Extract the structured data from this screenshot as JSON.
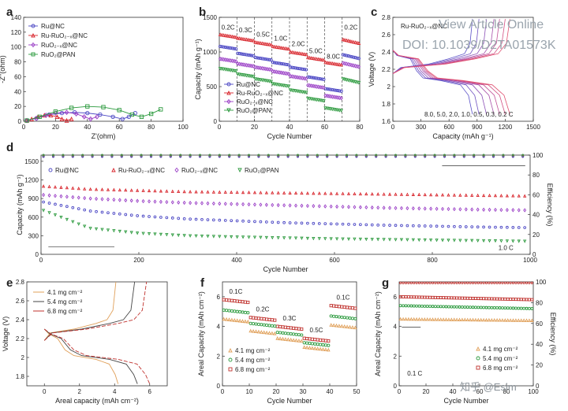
{
  "watermark": {
    "line1": "View Article Online",
    "line2": "DOI: 10.1039/D2TA01573K",
    "line3": "知乎 @Esim"
  },
  "chart_data": [
    {
      "id": "a",
      "type": "scatter",
      "label": "a",
      "xlabel": "Z'(ohm)",
      "ylabel": "-Z''(ohm)",
      "xlim": [
        0,
        100
      ],
      "ylim": [
        0,
        140
      ],
      "xticks": [
        0,
        20,
        40,
        60,
        80,
        100
      ],
      "yticks": [
        0,
        20,
        40,
        60,
        80,
        100,
        120,
        140
      ],
      "legend": [
        "Ru@NC",
        "Ru-RuO2-x@NC",
        "RuO2-x@NC",
        "RuO2@PAN"
      ],
      "series": [
        {
          "name": "Ru@NC",
          "color": "#4a46c4",
          "marker": "circle",
          "x": [
            2,
            8,
            16,
            24,
            32,
            40,
            48,
            56,
            62,
            66,
            70
          ],
          "y": [
            1,
            4,
            9,
            11,
            12,
            11,
            9,
            6,
            3,
            6,
            11
          ]
        },
        {
          "name": "Ru-RuO2-x@NC",
          "color": "#d8242b",
          "marker": "triangle",
          "x": [
            2,
            5,
            9,
            13,
            17,
            21,
            24,
            27,
            30
          ],
          "y": [
            1,
            3,
            6,
            8,
            8,
            6,
            3,
            1,
            3
          ]
        },
        {
          "name": "RuO2-x@NC",
          "color": "#9a3fc6",
          "marker": "diamond",
          "x": [
            2,
            8,
            14,
            20,
            27,
            33,
            38,
            42,
            46
          ],
          "y": [
            1,
            4,
            8,
            11,
            12,
            10,
            6,
            3,
            6
          ]
        },
        {
          "name": "RuO2@PAN",
          "color": "#2c9a3e",
          "marker": "square",
          "x": [
            2,
            10,
            20,
            30,
            40,
            50,
            60,
            68,
            74,
            80,
            86
          ],
          "y": [
            1,
            6,
            13,
            18,
            20,
            19,
            15,
            9,
            6,
            10,
            16
          ]
        }
      ]
    },
    {
      "id": "b",
      "type": "scatter",
      "label": "b",
      "xlabel": "Cycle Number",
      "ylabel": "Capacity (mAh g⁻¹)",
      "xlim": [
        0,
        80
      ],
      "ylim": [
        0,
        1500
      ],
      "xticks": [
        0,
        20,
        40,
        60,
        80
      ],
      "yticks": [
        0,
        500,
        1000,
        1500
      ],
      "rates": [
        {
          "label": "0.2C",
          "x": 5
        },
        {
          "label": "0.3C",
          "x": 15
        },
        {
          "label": "0.5C",
          "x": 25
        },
        {
          "label": "1.0C",
          "x": 35
        },
        {
          "label": "2.0C",
          "x": 45
        },
        {
          "label": "5.0C",
          "x": 55
        },
        {
          "label": "8.0C",
          "x": 65
        },
        {
          "label": "0.2C",
          "x": 75
        }
      ],
      "boundaries": [
        10,
        20,
        30,
        40,
        50,
        60,
        70
      ],
      "legend": [
        "Ru@NC",
        "Ru-RuO2-x@NC",
        "RuO2-x@NC",
        "RuO2@PAN"
      ],
      "series": [
        {
          "name": "Ru-RuO2-x@NC",
          "color": "#d8242b",
          "marker": "triangle",
          "levels": [
            1250,
            1200,
            1140,
            1080,
            1000,
            920,
            850,
            1180
          ]
        },
        {
          "name": "Ru@NC",
          "color": "#4a46c4",
          "marker": "circle",
          "levels": [
            1080,
            980,
            920,
            850,
            780,
            640,
            470,
            960
          ]
        },
        {
          "name": "RuO2-x@NC",
          "color": "#9a3fc6",
          "marker": "diamond",
          "levels": [
            900,
            830,
            780,
            720,
            650,
            520,
            370,
            840
          ]
        },
        {
          "name": "RuO2@PAN",
          "color": "#2c9a3e",
          "marker": "triangle-down",
          "levels": [
            760,
            680,
            610,
            540,
            450,
            330,
            190,
            610
          ]
        }
      ]
    },
    {
      "id": "c",
      "type": "line",
      "label": "c",
      "title": "Ru-RuO2-x@NC",
      "xlabel": "Capacity (mAh g⁻¹)",
      "ylabel": "Voltage (V)",
      "xlim": [
        0,
        1500
      ],
      "ylim": [
        1.6,
        2.8
      ],
      "xticks": [
        0,
        300,
        600,
        900,
        1200,
        1500
      ],
      "yticks": [
        1.6,
        1.8,
        2.0,
        2.2,
        2.4,
        2.6,
        2.8
      ],
      "rate_note": "8.0, 5.0, 2.0, 1.0, 0.5, 0.3, 0.2 C",
      "curves": [
        {
          "rate": "8.0",
          "color": "#5a50c8",
          "capacity": 850
        },
        {
          "rate": "5.0",
          "color": "#6d4fbf",
          "capacity": 920
        },
        {
          "rate": "2.0",
          "color": "#8b4fb6",
          "capacity": 1000
        },
        {
          "rate": "1.0",
          "color": "#a64fa8",
          "capacity": 1080
        },
        {
          "rate": "0.5",
          "color": "#c04f96",
          "capacity": 1140
        },
        {
          "rate": "0.3",
          "color": "#d24f82",
          "capacity": 1200
        },
        {
          "rate": "0.2",
          "color": "#e05070",
          "capacity": 1250
        }
      ]
    },
    {
      "id": "d",
      "type": "scatter",
      "label": "d",
      "xlabel": "Cycle Number",
      "ylabel": "Capacity (mAh g⁻¹)",
      "y2label": "Efficiency (%)",
      "xlim": [
        0,
        1000
      ],
      "ylim": [
        0,
        1600
      ],
      "y2lim": [
        0,
        100
      ],
      "xticks": [
        0,
        200,
        400,
        600,
        800,
        1000
      ],
      "yticks": [
        0,
        300,
        600,
        900,
        1200,
        1500
      ],
      "y2ticks": [
        0,
        20,
        40,
        60,
        80,
        100
      ],
      "rate_note": "1.0 C",
      "legend": [
        "Ru@NC",
        "Ru-RuO2-x@NC",
        "RuO2-x@NC",
        "RuO2@PAN"
      ],
      "series": [
        {
          "name": "Ru-RuO2-x@NC",
          "color": "#d8242b",
          "marker": "triangle",
          "x": [
            1,
            100,
            200,
            300,
            400,
            500,
            600,
            700,
            800,
            900,
            1000
          ],
          "y": [
            1100,
            1050,
            1030,
            1010,
            1000,
            990,
            980,
            970,
            960,
            950,
            940
          ]
        },
        {
          "name": "RuO2-x@NC",
          "color": "#9a3fc6",
          "marker": "diamond",
          "x": [
            1,
            100,
            200,
            300,
            400,
            500,
            600,
            700,
            800,
            900,
            1000
          ],
          "y": [
            960,
            900,
            860,
            830,
            810,
            790,
            770,
            750,
            735,
            720,
            710
          ]
        },
        {
          "name": "Ru@NC",
          "color": "#4a46c4",
          "marker": "circle",
          "x": [
            1,
            100,
            200,
            300,
            400,
            500,
            600,
            700,
            800,
            900,
            1000
          ],
          "y": [
            850,
            700,
            620,
            570,
            540,
            510,
            490,
            470,
            455,
            440,
            430
          ]
        },
        {
          "name": "RuO2@PAN",
          "color": "#2c9a3e",
          "marker": "triangle-down",
          "x": [
            1,
            100,
            200,
            300,
            400,
            500,
            600,
            700,
            800,
            900,
            1000
          ],
          "y": [
            720,
            420,
            340,
            300,
            280,
            265,
            250,
            240,
            230,
            220,
            210
          ]
        }
      ],
      "efficiency": [
        {
          "name": "Ru-RuO2-x@NC",
          "color": "#d8242b",
          "value": 99
        },
        {
          "name": "Ru@NC",
          "color": "#4a46c4",
          "value": 98.5
        },
        {
          "name": "RuO2@PAN",
          "color": "#2c9a3e",
          "value": 100
        }
      ]
    },
    {
      "id": "e",
      "type": "line",
      "label": "e",
      "xlabel": "Areal capacity (mAh cm⁻²)",
      "ylabel": "Voltage (V)",
      "xlim": [
        -1,
        7
      ],
      "ylim": [
        1.7,
        2.8
      ],
      "xticks": [
        0,
        2,
        4,
        6
      ],
      "yticks": [
        1.8,
        2.0,
        2.2,
        2.4,
        2.6,
        2.8
      ],
      "legend": [
        "4.1 mg cm⁻²",
        "5.4 mg cm⁻²",
        "6.8 mg cm⁻²"
      ],
      "curves": [
        {
          "name": "4.1 mg cm⁻²",
          "color": "#e0a05a",
          "capacity": 4.2
        },
        {
          "name": "5.4 mg cm⁻²",
          "color": "#444444",
          "capacity": 5.3
        },
        {
          "name": "6.8 mg cm⁻²",
          "color": "#c0322e",
          "capacity": 6.0
        }
      ]
    },
    {
      "id": "f",
      "type": "scatter",
      "label": "f",
      "xlabel": "Cycle Number",
      "ylabel": "Areal Capacity (mAh cm⁻²)",
      "xlim": [
        0,
        50
      ],
      "ylim": [
        0,
        7
      ],
      "xticks": [
        0,
        10,
        20,
        30,
        40,
        50
      ],
      "yticks": [
        0,
        2,
        4,
        6
      ],
      "rates": [
        {
          "label": "0.1C",
          "x": 5
        },
        {
          "label": "0.2C",
          "x": 15
        },
        {
          "label": "0.3C",
          "x": 25
        },
        {
          "label": "0.5C",
          "x": 35
        },
        {
          "label": "0.1C",
          "x": 45
        }
      ],
      "legend": [
        "4.1 mg cm⁻²",
        "5.4 mg cm⁻²",
        "6.8 mg cm⁻²"
      ],
      "series": [
        {
          "name": "6.8 mg cm⁻²",
          "color": "#c0322e",
          "marker": "square",
          "levels": [
            5.8,
            4.6,
            4.0,
            3.2,
            5.4
          ]
        },
        {
          "name": "5.4 mg cm⁻²",
          "color": "#2c9a3e",
          "marker": "circle",
          "levels": [
            5.1,
            4.2,
            3.6,
            2.9,
            4.7
          ]
        },
        {
          "name": "4.1 mg cm⁻²",
          "color": "#e0a05a",
          "marker": "triangle",
          "levels": [
            4.5,
            3.7,
            3.2,
            2.6,
            4.1
          ]
        }
      ]
    },
    {
      "id": "g",
      "type": "scatter",
      "label": "g",
      "xlabel": "Cycle Number",
      "ylabel": "Areal Capacity (mAh cm⁻²)",
      "y2label": "Efficiency (%)",
      "xlim": [
        0,
        100
      ],
      "ylim": [
        0,
        7
      ],
      "y2lim": [
        0,
        100
      ],
      "xticks": [
        0,
        20,
        40,
        60,
        80,
        100
      ],
      "yticks": [
        0,
        2,
        4,
        6
      ],
      "y2ticks": [
        0,
        20,
        40,
        60,
        80,
        100
      ],
      "rate_note": "0.1 C",
      "legend": [
        "4.1 mg cm⁻²",
        "5.4 mg cm⁻²",
        "6.8 mg cm⁻²"
      ],
      "series": [
        {
          "name": "6.8 mg cm⁻²",
          "color": "#c0322e",
          "marker": "square",
          "start": 6.0,
          "end": 5.8
        },
        {
          "name": "5.4 mg cm⁻²",
          "color": "#2c9a3e",
          "marker": "circle",
          "start": 5.4,
          "end": 5.2
        },
        {
          "name": "4.1 mg cm⁻²",
          "color": "#e0a05a",
          "marker": "triangle",
          "start": 4.5,
          "end": 4.4
        }
      ],
      "efficiency_value": 99
    }
  ]
}
